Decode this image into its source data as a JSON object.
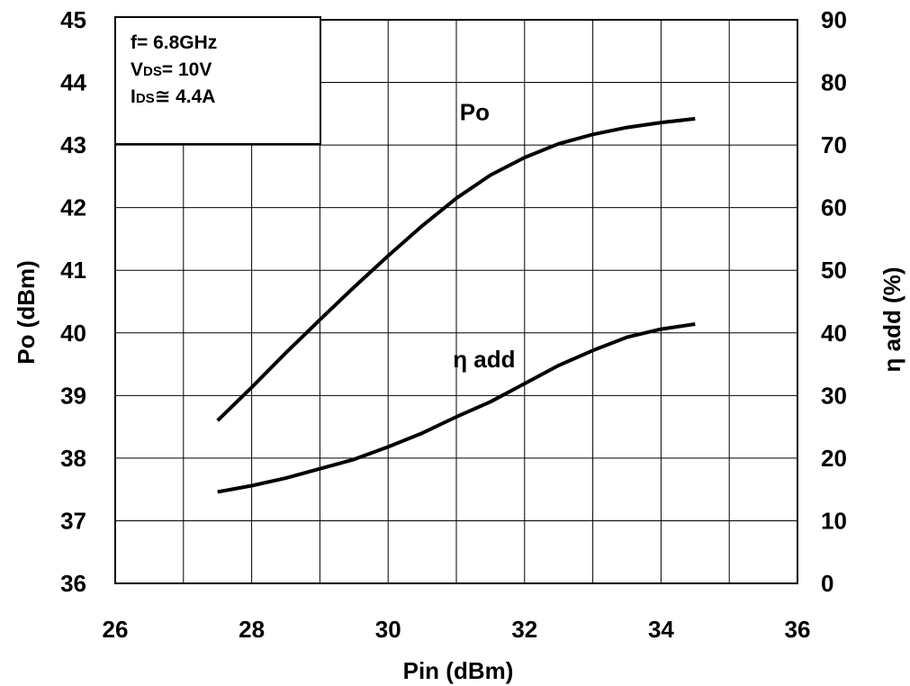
{
  "chart_data": {
    "type": "line",
    "xlabel": "Pin (dBm)",
    "ylabel": "Po (dBm)",
    "y2label": "η add (%)",
    "xlim": [
      26,
      36
    ],
    "ylim": [
      36,
      45
    ],
    "y2lim": [
      0,
      90
    ],
    "xticks": [
      "26",
      "28",
      "30",
      "32",
      "34",
      "36"
    ],
    "yticks": [
      "36",
      "37",
      "38",
      "39",
      "40",
      "41",
      "42",
      "43",
      "44",
      "45"
    ],
    "y2ticks": [
      "0",
      "10",
      "20",
      "30",
      "40",
      "50",
      "60",
      "70",
      "80",
      "90"
    ],
    "grid": true,
    "conditions": [
      {
        "main": "f= 6.8GHz",
        "sub": "",
        "rest": ""
      },
      {
        "main": "V",
        "sub": "DS",
        "rest": "= 10V"
      },
      {
        "main": "I",
        "sub": "DS",
        "rest": "≅ 4.4A"
      }
    ],
    "series": [
      {
        "name": "Po",
        "axis": "left",
        "color": "#000000",
        "x": [
          27.5,
          28.0,
          28.5,
          29.0,
          29.5,
          30.0,
          30.5,
          31.0,
          31.5,
          32.0,
          32.5,
          33.0,
          33.5,
          34.0,
          34.5
        ],
        "y": [
          38.6,
          39.13,
          39.68,
          40.21,
          40.73,
          41.23,
          41.71,
          42.15,
          42.52,
          42.8,
          43.02,
          43.17,
          43.28,
          43.36,
          43.42
        ]
      },
      {
        "name": "η add",
        "axis": "right",
        "color": "#000000",
        "x": [
          27.5,
          28.0,
          28.5,
          29.0,
          29.5,
          30.0,
          30.5,
          31.0,
          31.5,
          32.0,
          32.5,
          33.0,
          33.5,
          34.0,
          34.5
        ],
        "y": [
          14.6,
          15.6,
          16.8,
          18.3,
          19.8,
          21.8,
          24.0,
          26.6,
          29.0,
          31.9,
          34.8,
          37.2,
          39.3,
          40.6,
          41.4
        ]
      }
    ]
  }
}
